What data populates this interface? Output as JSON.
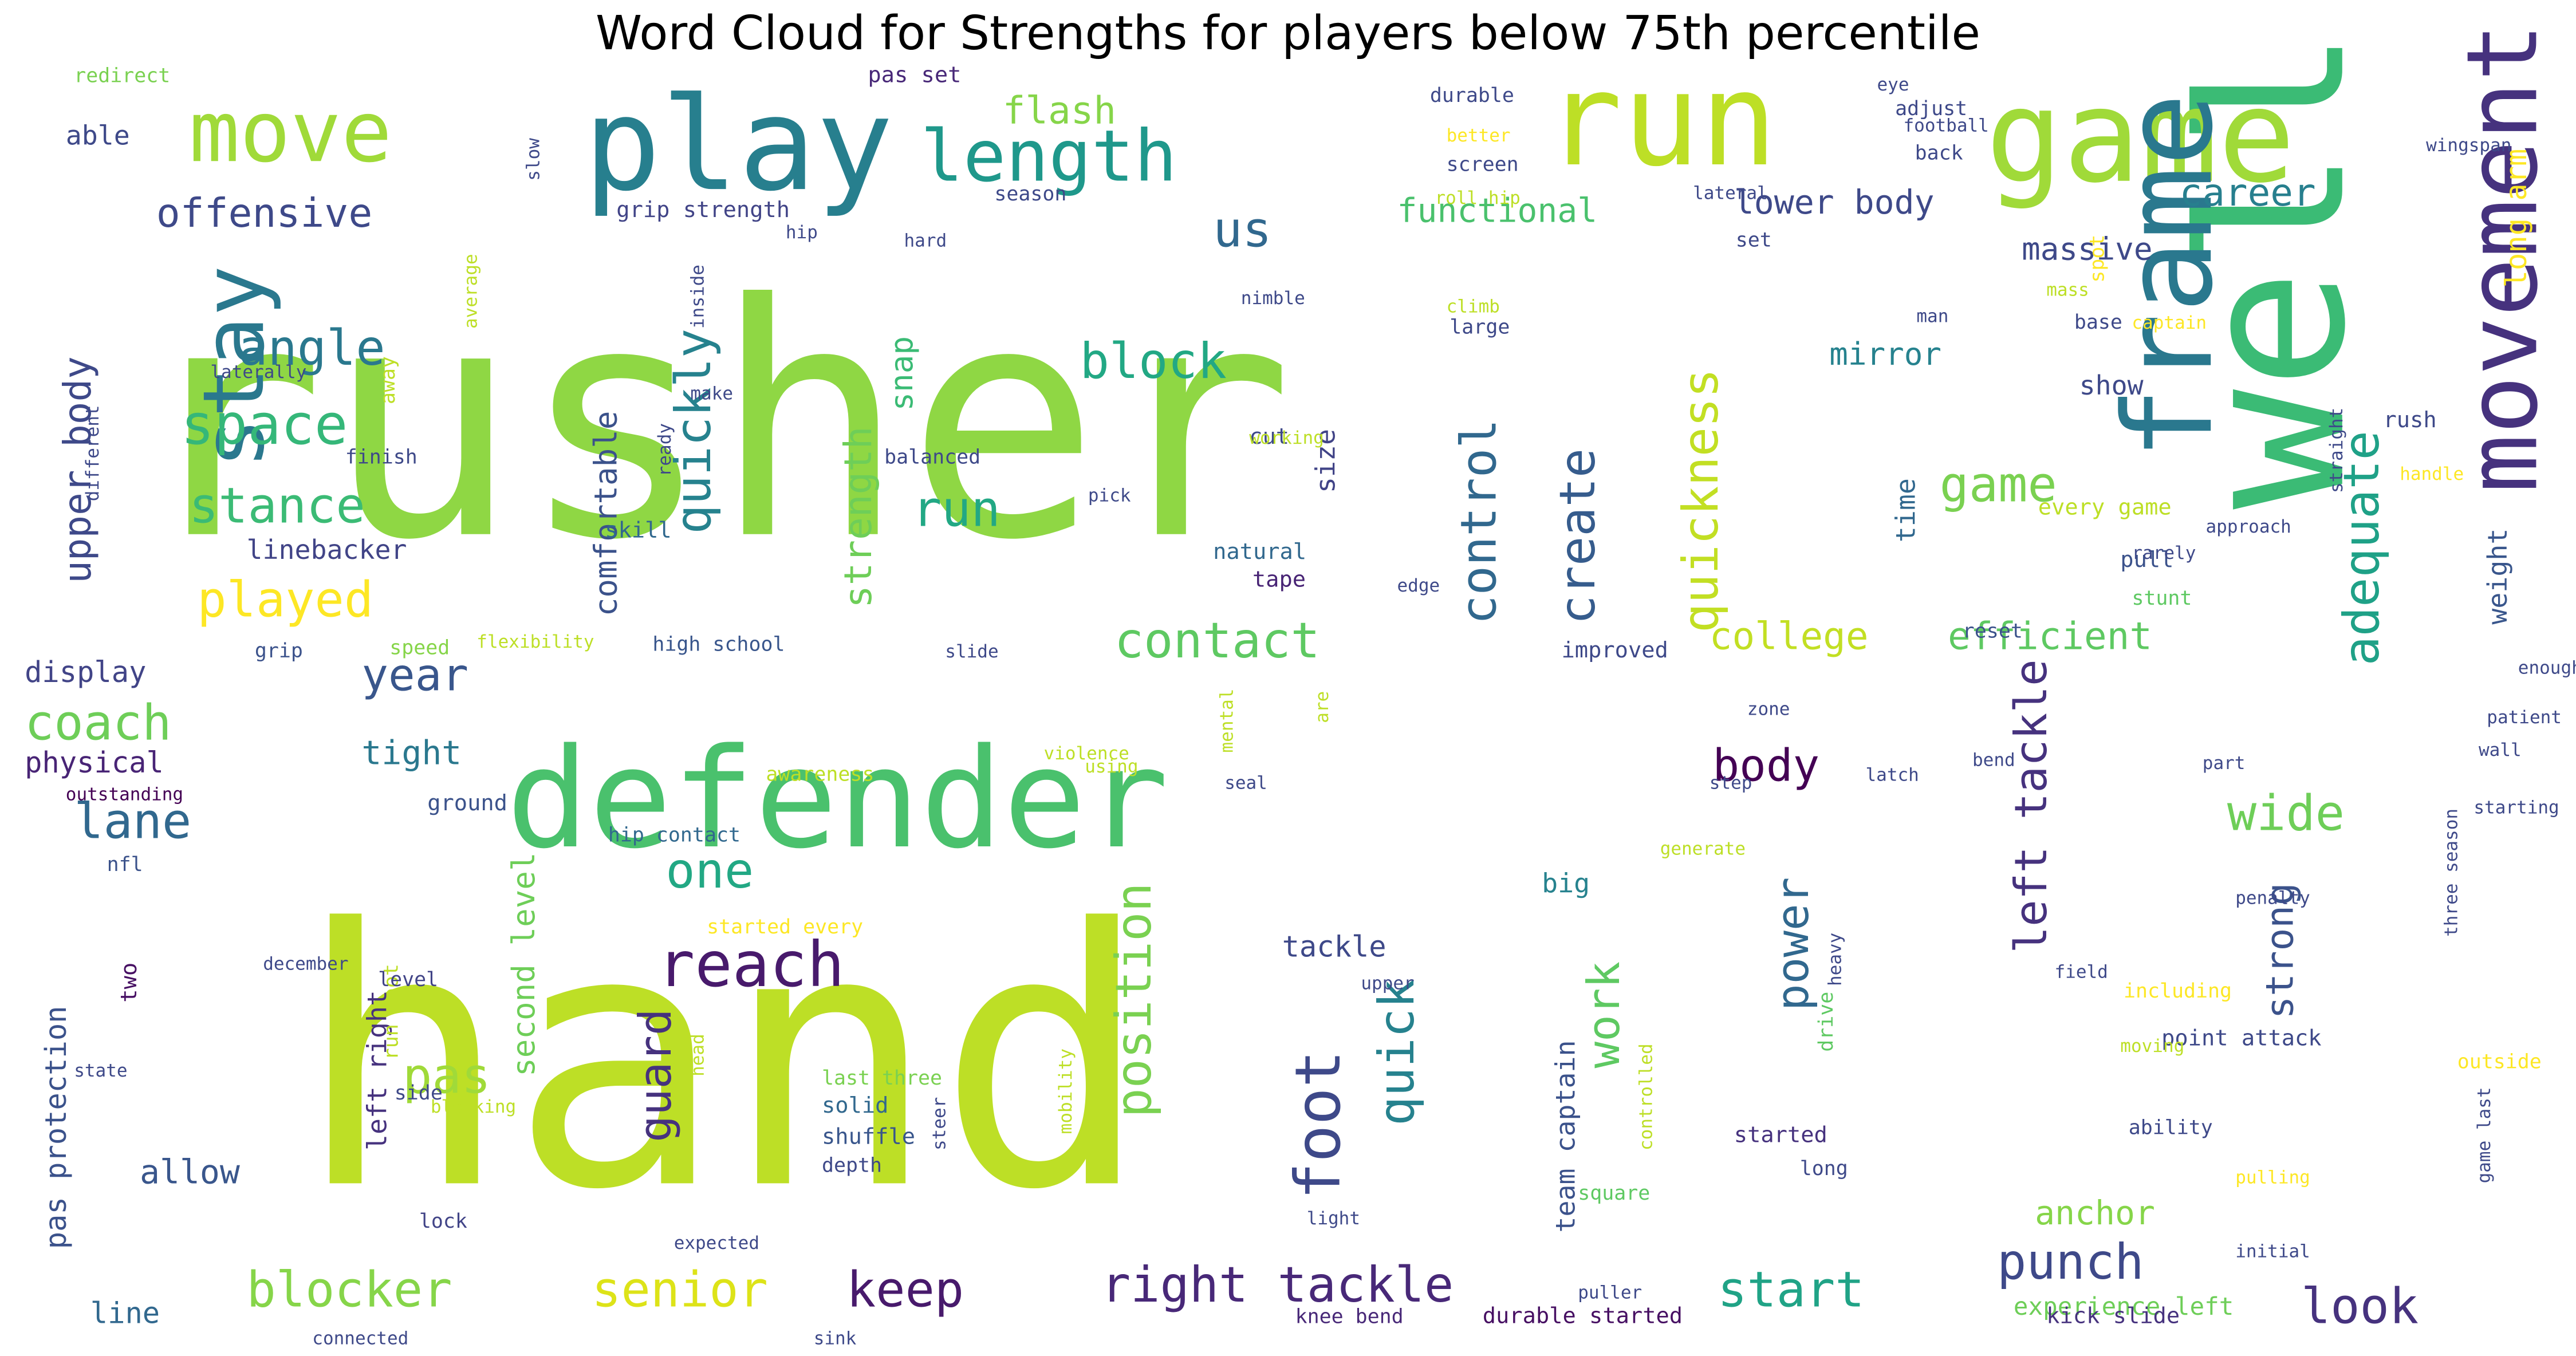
{
  "title": "Word Cloud for Strengths for players below 75th percentile",
  "palette": [
    "#440154",
    "#46327e",
    "#365c8d",
    "#277f8e",
    "#1fa187",
    "#4ac16d",
    "#a0da39",
    "#c2df23",
    "#fde725"
  ],
  "words": [
    {
      "text": "rusher",
      "color": "#8fd744"
    },
    {
      "text": "hand",
      "color": "#bddf26"
    },
    {
      "text": "defender",
      "color": "#4ac16d"
    },
    {
      "text": "well",
      "color": "#3bbb75"
    },
    {
      "text": "run",
      "color": "#bddf26"
    },
    {
      "text": "game",
      "color": "#a0da39"
    },
    {
      "text": "play",
      "color": "#277f8e"
    },
    {
      "text": "move",
      "color": "#a0da39"
    },
    {
      "text": "stay",
      "color": "#2a788e"
    },
    {
      "text": "frame",
      "color": "#2a788e"
    },
    {
      "text": "movement",
      "color": "#46327e"
    },
    {
      "text": "length",
      "color": "#1f988b"
    },
    {
      "text": "offensive",
      "color": "#3e4989"
    },
    {
      "text": "flash",
      "color": "#86d549"
    },
    {
      "text": "us",
      "color": "#31688e"
    },
    {
      "text": "career",
      "color": "#277f8e"
    },
    {
      "text": "block",
      "color": "#22a884"
    },
    {
      "text": "angle",
      "color": "#2a788e"
    },
    {
      "text": "space",
      "color": "#35b779"
    },
    {
      "text": "stance",
      "color": "#3bbb75"
    },
    {
      "text": "upper body",
      "color": "#3e4989"
    },
    {
      "text": "played",
      "color": "#fde725"
    },
    {
      "text": "linebacker",
      "color": "#414487"
    },
    {
      "text": "quickly",
      "color": "#26828e"
    },
    {
      "text": "strength",
      "color": "#6ece58"
    },
    {
      "text": "run",
      "color": "#22a884"
    },
    {
      "text": "control",
      "color": "#31688e"
    },
    {
      "text": "create",
      "color": "#365c8d"
    },
    {
      "text": "quickness",
      "color": "#c2df23"
    },
    {
      "text": "game",
      "color": "#7ad151"
    },
    {
      "text": "adequate",
      "color": "#1fa187"
    },
    {
      "text": "functional",
      "color": "#4ac16d"
    },
    {
      "text": "lower body",
      "color": "#3e4989"
    },
    {
      "text": "massive",
      "color": "#3e4989"
    },
    {
      "text": "mirror",
      "color": "#26828e"
    },
    {
      "text": "comfortable",
      "color": "#3b528b"
    },
    {
      "text": "snap",
      "color": "#3bbb75"
    },
    {
      "text": "coach",
      "color": "#6ece58"
    },
    {
      "text": "year",
      "color": "#39568c"
    },
    {
      "text": "lane",
      "color": "#31688e"
    },
    {
      "text": "physical",
      "color": "#482475"
    },
    {
      "text": "display",
      "color": "#414487"
    },
    {
      "text": "tight",
      "color": "#2a788e"
    },
    {
      "text": "contact",
      "color": "#5ec962"
    },
    {
      "text": "college",
      "color": "#c2df23"
    },
    {
      "text": "efficient",
      "color": "#5ec962"
    },
    {
      "text": "body",
      "color": "#440154"
    },
    {
      "text": "wide",
      "color": "#6ece58"
    },
    {
      "text": "one",
      "color": "#22a884"
    },
    {
      "text": "reach",
      "color": "#481a6c"
    },
    {
      "text": "position",
      "color": "#7ad151"
    },
    {
      "text": "foot",
      "color": "#3e4989"
    },
    {
      "text": "quick",
      "color": "#26828e"
    },
    {
      "text": "left tackle",
      "color": "#46327e"
    },
    {
      "text": "strong",
      "color": "#3b528b"
    },
    {
      "text": "power",
      "color": "#31688e"
    },
    {
      "text": "work",
      "color": "#5ec962"
    },
    {
      "text": "pas",
      "color": "#a0da39"
    },
    {
      "text": "guard",
      "color": "#46327e"
    },
    {
      "text": "second level",
      "color": "#6ece58"
    },
    {
      "text": "left right",
      "color": "#46327e"
    },
    {
      "text": "pas protection",
      "color": "#3b528b"
    },
    {
      "text": "two",
      "color": "#471063"
    },
    {
      "text": "allow",
      "color": "#39568c"
    },
    {
      "text": "line",
      "color": "#31688e"
    },
    {
      "text": "blocker",
      "color": "#86d549"
    },
    {
      "text": "senior",
      "color": "#dde318"
    },
    {
      "text": "keep",
      "color": "#481a6c"
    },
    {
      "text": "right tackle",
      "color": "#482878"
    },
    {
      "text": "start",
      "color": "#20a386"
    },
    {
      "text": "punch",
      "color": "#3e4989"
    },
    {
      "text": "look",
      "color": "#46327e"
    },
    {
      "text": "anchor",
      "color": "#86d549"
    },
    {
      "text": "team captain",
      "color": "#3b528b"
    },
    {
      "text": "tackle",
      "color": "#3e4989"
    },
    {
      "text": "big",
      "color": "#26828e"
    },
    {
      "text": "size",
      "color": "#414487"
    },
    {
      "text": "time",
      "color": "#31688e"
    },
    {
      "text": "show",
      "color": "#3e4989"
    },
    {
      "text": "weight",
      "color": "#39568c"
    },
    {
      "text": "long arm",
      "color": "#fde725"
    },
    {
      "text": "improved",
      "color": "#3e4989"
    },
    {
      "text": "able",
      "color": "#3e4989"
    },
    {
      "text": "grip strength",
      "color": "#414487"
    },
    {
      "text": "roll hip",
      "color": "#bddf26"
    },
    {
      "text": "skill",
      "color": "#31688e"
    },
    {
      "text": "speed",
      "color": "#86d549"
    },
    {
      "text": "flexibility",
      "color": "#bddf26"
    },
    {
      "text": "high school",
      "color": "#39568c"
    },
    {
      "text": "outstanding",
      "color": "#440154"
    },
    {
      "text": "durable",
      "color": "#3e4989"
    },
    {
      "text": "natural",
      "color": "#31688e"
    },
    {
      "text": "tape",
      "color": "#482475"
    },
    {
      "text": "balanced",
      "color": "#3e4989"
    },
    {
      "text": "hip contact",
      "color": "#31688e"
    },
    {
      "text": "ground",
      "color": "#3b528b"
    },
    {
      "text": "solid",
      "color": "#31688e"
    },
    {
      "text": "shuffle",
      "color": "#39568c"
    },
    {
      "text": "depth",
      "color": "#3e4989"
    },
    {
      "text": "last three",
      "color": "#7ad151"
    },
    {
      "text": "started every",
      "color": "#fde725"
    },
    {
      "text": "run foot",
      "color": "#bddf26"
    },
    {
      "text": "level",
      "color": "#414487"
    },
    {
      "text": "side",
      "color": "#3e4989"
    },
    {
      "text": "lock",
      "color": "#414487"
    },
    {
      "text": "point attack",
      "color": "#3e4989"
    },
    {
      "text": "ability",
      "color": "#3e4989"
    },
    {
      "text": "experience left",
      "color": "#6ece58"
    },
    {
      "text": "durable started",
      "color": "#471063"
    },
    {
      "text": "kick slide",
      "color": "#46327e"
    },
    {
      "text": "knee bend",
      "color": "#482878"
    },
    {
      "text": "reset",
      "color": "#3b528b"
    },
    {
      "text": "pas set",
      "color": "#482878"
    },
    {
      "text": "every game",
      "color": "#bddf26"
    },
    {
      "text": "pull",
      "color": "#3b528b"
    },
    {
      "text": "stunt",
      "color": "#5ec962"
    },
    {
      "text": "rush",
      "color": "#3e4989"
    },
    {
      "text": "handle",
      "color": "#fde725"
    },
    {
      "text": "cut",
      "color": "#3e4989"
    },
    {
      "text": "square",
      "color": "#5ec962"
    },
    {
      "text": "started",
      "color": "#46327e"
    },
    {
      "text": "long",
      "color": "#3e4989"
    },
    {
      "text": "drive",
      "color": "#5ec962"
    },
    {
      "text": "finish",
      "color": "#3e4989"
    },
    {
      "text": "away",
      "color": "#bddf26"
    },
    {
      "text": "redirect",
      "color": "#7ad151"
    },
    {
      "text": "base",
      "color": "#3e4989"
    },
    {
      "text": "season",
      "color": "#3e4989"
    },
    {
      "text": "set",
      "color": "#3e4989"
    },
    {
      "text": "spot",
      "color": "#fde725"
    },
    {
      "text": "man",
      "color": "#3e4989"
    },
    {
      "text": "back",
      "color": "#3e4989"
    },
    {
      "text": "including",
      "color": "#fde725"
    },
    {
      "text": "outside",
      "color": "#fde725"
    },
    {
      "text": "nfl",
      "color": "#3b528b"
    },
    {
      "text": "grip",
      "color": "#3b528b"
    },
    {
      "text": "screen",
      "color": "#3e4989"
    },
    {
      "text": "better",
      "color": "#fde725"
    },
    {
      "text": "adjust",
      "color": "#3e4989"
    },
    {
      "text": "eye",
      "color": "#3e4989"
    },
    {
      "text": "football",
      "color": "#3e4989"
    },
    {
      "text": "lateral",
      "color": "#3e4989"
    },
    {
      "text": "hip",
      "color": "#3e4989"
    },
    {
      "text": "hard",
      "color": "#3e4989"
    },
    {
      "text": "nimble",
      "color": "#3e4989"
    },
    {
      "text": "large",
      "color": "#3e4989"
    },
    {
      "text": "climb",
      "color": "#bddf26"
    },
    {
      "text": "make",
      "color": "#3e4989"
    },
    {
      "text": "working",
      "color": "#bddf26"
    },
    {
      "text": "pick",
      "color": "#3e4989"
    },
    {
      "text": "edge",
      "color": "#3e4989"
    },
    {
      "text": "light",
      "color": "#3e4989"
    },
    {
      "text": "puller",
      "color": "#3e4989"
    },
    {
      "text": "heavy",
      "color": "#3e4989"
    },
    {
      "text": "expected",
      "color": "#3e4989"
    },
    {
      "text": "sink",
      "color": "#3e4989"
    },
    {
      "text": "connected",
      "color": "#3e4989"
    },
    {
      "text": "december",
      "color": "#3e4989"
    },
    {
      "text": "state",
      "color": "#3e4989"
    },
    {
      "text": "blocking",
      "color": "#bddf26"
    },
    {
      "text": "slide",
      "color": "#3e4989"
    },
    {
      "text": "awareness",
      "color": "#bddf26"
    },
    {
      "text": "violence",
      "color": "#bddf26"
    },
    {
      "text": "using",
      "color": "#bddf26"
    },
    {
      "text": "seal",
      "color": "#3e4989"
    },
    {
      "text": "mental",
      "color": "#bddf26"
    },
    {
      "text": "step",
      "color": "#3e4989"
    },
    {
      "text": "generate",
      "color": "#bddf26"
    },
    {
      "text": "zone",
      "color": "#3e4989"
    },
    {
      "text": "latch",
      "color": "#3e4989"
    },
    {
      "text": "bend",
      "color": "#3e4989"
    },
    {
      "text": "part",
      "color": "#3e4989"
    },
    {
      "text": "starting",
      "color": "#3e4989"
    },
    {
      "text": "three season",
      "color": "#3e4989"
    },
    {
      "text": "penalty",
      "color": "#3e4989"
    },
    {
      "text": "field",
      "color": "#3e4989"
    },
    {
      "text": "moving",
      "color": "#bddf26"
    },
    {
      "text": "initial",
      "color": "#3e4989"
    },
    {
      "text": "game last",
      "color": "#3e4989"
    },
    {
      "text": "pulling",
      "color": "#fde725"
    },
    {
      "text": "straight",
      "color": "#3e4989"
    },
    {
      "text": "rarely",
      "color": "#3e4989"
    },
    {
      "text": "approach",
      "color": "#3e4989"
    },
    {
      "text": "patient",
      "color": "#3e4989"
    },
    {
      "text": "wall",
      "color": "#3e4989"
    },
    {
      "text": "wingspan",
      "color": "#3e4989"
    },
    {
      "text": "captain",
      "color": "#fde725"
    },
    {
      "text": "mass",
      "color": "#bddf26"
    },
    {
      "text": "slow",
      "color": "#3e4989"
    },
    {
      "text": "inside",
      "color": "#3e4989"
    },
    {
      "text": "ready",
      "color": "#3e4989"
    },
    {
      "text": "average",
      "color": "#bddf26"
    },
    {
      "text": "laterally",
      "color": "#3e4989"
    },
    {
      "text": "different",
      "color": "#3e4989"
    },
    {
      "text": "upper",
      "color": "#3e4989"
    },
    {
      "text": "head",
      "color": "#bddf26"
    },
    {
      "text": "mobility",
      "color": "#bddf26"
    },
    {
      "text": "steer",
      "color": "#3e4989"
    },
    {
      "text": "controlled",
      "color": "#bddf26"
    },
    {
      "text": "enough",
      "color": "#3e4989"
    },
    {
      "text": "are",
      "color": "#bddf26"
    }
  ]
}
